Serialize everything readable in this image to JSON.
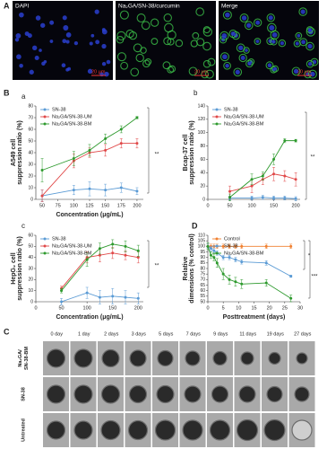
{
  "figure": {
    "panel_a": {
      "label": "A",
      "images": [
        {
          "title": "DAPI",
          "scale": "20 μm"
        },
        {
          "title": "Na₂GA/SN-38/curcumin",
          "scale": "20 μm"
        },
        {
          "title": "Merge",
          "scale": "20 μm"
        }
      ]
    },
    "panel_b_label": "B",
    "panel_c": {
      "label": "C",
      "days": [
        "0 day",
        "1 day",
        "2 days",
        "3 days",
        "5 days",
        "7 days",
        "9 days",
        "11 days",
        "19 days",
        "27 days"
      ],
      "rows": [
        [
          "Na₂GA/",
          "SN-38-BM"
        ],
        [
          "SN-38"
        ],
        [
          "Untreated"
        ]
      ]
    }
  },
  "chart_data": [
    {
      "type": "line",
      "panel": "a",
      "ylabel": [
        "A549 cell",
        "suppression ratio (%)"
      ],
      "xlabel": "Concentration (μg/mL)",
      "x": [
        50,
        100,
        125,
        150,
        175,
        200
      ],
      "xlim": [
        40,
        210
      ],
      "xticks": [
        50,
        75,
        100,
        125,
        150,
        175,
        200
      ],
      "ylim": [
        0,
        80
      ],
      "yticks": [
        0,
        10,
        20,
        30,
        40,
        50,
        60,
        70,
        80
      ],
      "legend": "upper left",
      "series": [
        {
          "name": "SN-38",
          "color": "#5b9bd5",
          "values": [
            3,
            8,
            9,
            8,
            10,
            7
          ],
          "errors": [
            5,
            4,
            6,
            5,
            4,
            3
          ]
        },
        {
          "name": "Na₂GA/SN-38-UM",
          "color": "#e04848",
          "values": [
            3,
            33,
            40,
            42,
            48,
            48
          ],
          "errors": [
            5,
            6,
            4,
            5,
            4,
            4
          ]
        },
        {
          "name": "Na₂GA/SN-38-BM",
          "color": "#2e9a2e",
          "values": [
            25,
            35,
            42,
            52,
            60,
            70
          ],
          "errors": [
            10,
            6,
            5,
            4,
            3,
            1
          ]
        }
      ],
      "annotations": [
        {
          "text": "**"
        }
      ]
    },
    {
      "type": "line",
      "panel": "b",
      "ylabel": [
        "Bcap-37 cell",
        "suppression ratio (%)"
      ],
      "x": [
        50,
        100,
        125,
        150,
        175,
        200
      ],
      "xlim": [
        0,
        210
      ],
      "xticks": [
        0,
        50,
        100,
        150,
        200
      ],
      "ylim": [
        0,
        140
      ],
      "yticks": [
        0,
        20,
        40,
        60,
        80,
        100,
        120,
        140
      ],
      "legend": "upper left",
      "series": [
        {
          "name": "SN-38",
          "color": "#5b9bd5",
          "values": [
            2,
            2,
            3,
            2,
            2,
            1
          ],
          "errors": [
            3,
            3,
            3,
            3,
            3,
            3
          ]
        },
        {
          "name": "Na₂GA/SN-38-UM",
          "color": "#e04848",
          "values": [
            12,
            20,
            30,
            38,
            35,
            30
          ],
          "errors": [
            8,
            10,
            8,
            10,
            8,
            10
          ]
        },
        {
          "name": "Na₂GA/SN-38-BM",
          "color": "#2e9a2e",
          "values": [
            3,
            30,
            35,
            60,
            88,
            88
          ],
          "errors": [
            5,
            8,
            6,
            8,
            3,
            2
          ]
        }
      ],
      "annotations": [
        {
          "text": "**"
        }
      ]
    },
    {
      "type": "line",
      "panel": "c",
      "ylabel": [
        "HepG₂ cell",
        "suppression ratio (%)"
      ],
      "xlabel": "Concentration (μg/mL)",
      "x": [
        50,
        100,
        125,
        150,
        175,
        200
      ],
      "xlim": [
        0,
        210
      ],
      "xticks": [
        0,
        50,
        100,
        150,
        200
      ],
      "ylim": [
        0,
        60
      ],
      "yticks": [
        0,
        10,
        20,
        30,
        40,
        50,
        60
      ],
      "legend": "upper left",
      "series": [
        {
          "name": "SN-38",
          "color": "#5b9bd5",
          "values": [
            0,
            8,
            4,
            5,
            4,
            3
          ],
          "errors": [
            3,
            5,
            6,
            7,
            6,
            5
          ]
        },
        {
          "name": "Na₂GA/SN-38-UM",
          "color": "#e04848",
          "values": [
            12,
            40,
            42,
            44,
            42,
            40
          ],
          "errors": [
            2,
            5,
            6,
            5,
            4,
            5
          ]
        },
        {
          "name": "Na₂GA/SN-38-BM",
          "color": "#2e9a2e",
          "values": [
            10,
            38,
            48,
            52,
            50,
            46
          ],
          "errors": [
            2,
            6,
            5,
            4,
            5,
            5
          ]
        }
      ],
      "annotations": [
        {
          "text": "**"
        }
      ]
    },
    {
      "type": "line",
      "panel": "D",
      "ylabel": [
        "Relative",
        "dimensions (% control)"
      ],
      "xlabel": "Posttreatment (days)",
      "x": [
        0,
        1,
        2,
        3,
        5,
        7,
        9,
        11,
        19,
        27
      ],
      "xlim": [
        0,
        30
      ],
      "xticks": [
        0,
        5,
        10,
        15,
        20,
        25,
        30
      ],
      "ylim": [
        50,
        110
      ],
      "yticks": [
        50,
        55,
        60,
        65,
        70,
        75,
        80,
        85,
        90,
        95,
        100,
        105,
        110
      ],
      "legend": "upper left",
      "series": [
        {
          "name": "Control",
          "color": "#f08030",
          "values": [
            100,
            100,
            100,
            100,
            100,
            100,
            100,
            100,
            100,
            100
          ],
          "errors": [
            2,
            2,
            2,
            2,
            2,
            2,
            2,
            2,
            2,
            2
          ]
        },
        {
          "name": "SN-38",
          "color": "#5b9bd5",
          "values": [
            100,
            98,
            96,
            94,
            90,
            90,
            88,
            86,
            85,
            73
          ],
          "errors": [
            2,
            2,
            2,
            2,
            2,
            2,
            2,
            2,
            2,
            1
          ]
        },
        {
          "name": "Na₂GA/SN-38-BM",
          "color": "#2e9a2e",
          "values": [
            100,
            92,
            90,
            85,
            75,
            70,
            68,
            66,
            67,
            53
          ],
          "errors": [
            3,
            3,
            3,
            4,
            5,
            4,
            4,
            4,
            3,
            3
          ]
        }
      ],
      "annotations": [
        {
          "text": "*"
        },
        {
          "text": "***"
        }
      ]
    }
  ]
}
